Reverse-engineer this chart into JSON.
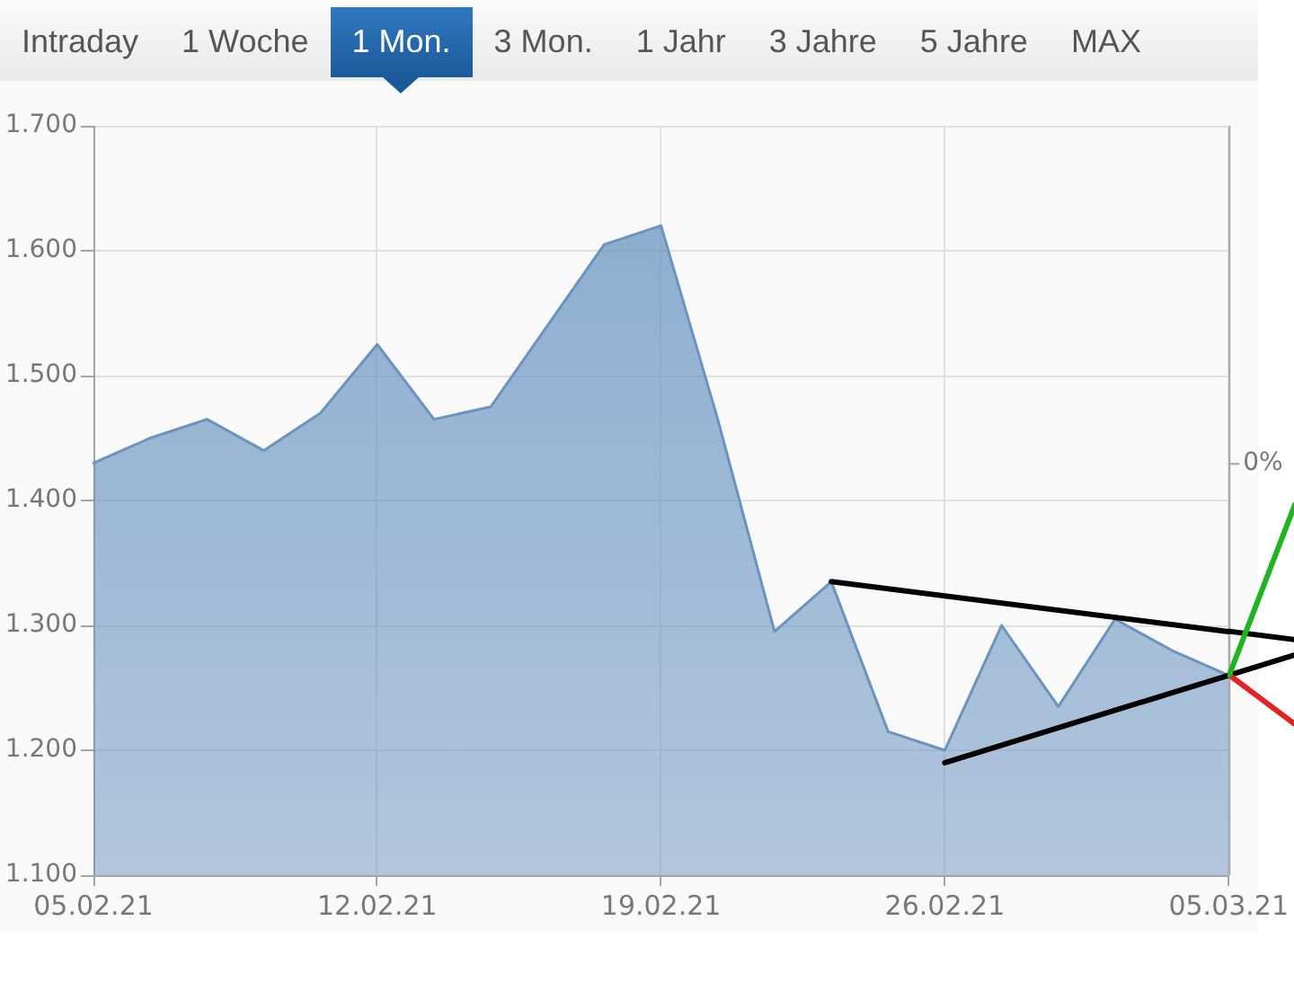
{
  "chart_data": {
    "type": "area",
    "categories": [
      "05.02.21",
      null,
      null,
      null,
      null,
      "12.02.21",
      null,
      null,
      null,
      null,
      "19.02.21",
      null,
      null,
      null,
      null,
      "26.02.21",
      null,
      null,
      null,
      null,
      "05.03.21"
    ],
    "series": [
      {
        "color": "#6a94c0",
        "values": [
          1430,
          1450,
          1465,
          1440,
          1470,
          1525,
          1465,
          1475,
          1540,
          1605,
          1620,
          1465,
          1295,
          1335,
          1215,
          1200,
          1300,
          1235,
          1305,
          1280,
          1260
        ]
      },
      {
        "type": "line",
        "color": "#000000",
        "values": [
          null,
          null,
          null,
          null,
          null,
          null,
          null,
          null,
          null,
          null,
          null,
          null,
          null,
          1335,
          null,
          null,
          null,
          null,
          null,
          null,
          1295
        ]
      },
      {
        "type": "line",
        "color": "#000000",
        "values": [
          null,
          null,
          null,
          null,
          null,
          null,
          null,
          null,
          null,
          null,
          null,
          null,
          null,
          null,
          null,
          1190,
          null,
          null,
          null,
          null,
          1260
        ]
      }
    ],
    "ylim": [
      1100,
      1700
    ],
    "yticks": [
      {
        "value": 1100,
        "label": "1.100"
      },
      {
        "value": 1200,
        "label": "1.200"
      },
      {
        "value": 1300,
        "label": "1.300"
      },
      {
        "value": 1400,
        "label": "1.400"
      },
      {
        "value": 1500,
        "label": "1.500"
      },
      {
        "value": 1600,
        "label": "1.600"
      },
      {
        "value": 1700,
        "label": "1.700"
      }
    ],
    "grid": true,
    "annotations": [
      "Intraday",
      "1 Woche",
      "1 Mon.",
      "3 Mon.",
      "1 Jahr",
      "3 Jahre",
      "5 Jahre",
      "MAX",
      "0%"
    ]
  }
}
